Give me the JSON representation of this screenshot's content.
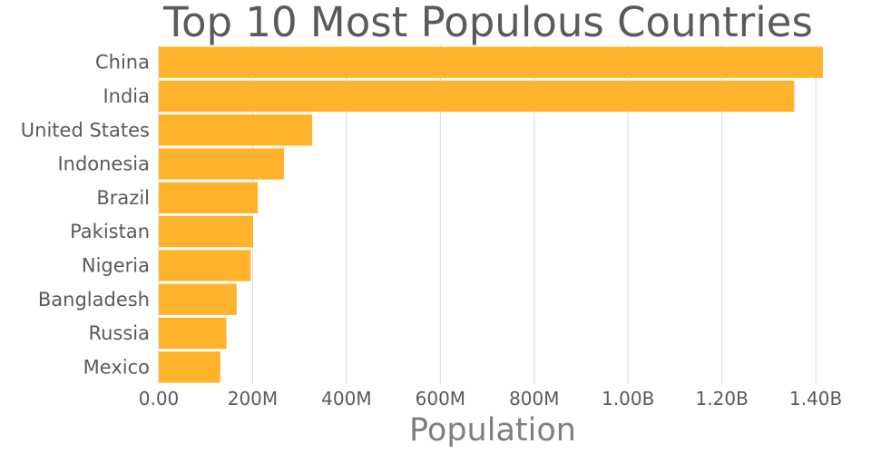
{
  "chart_data": {
    "type": "bar",
    "orientation": "horizontal",
    "title": "Top 10 Most Populous Countries",
    "xlabel": "Population",
    "ylabel": "",
    "categories": [
      "China",
      "India",
      "United States",
      "Indonesia",
      "Brazil",
      "Pakistan",
      "Nigeria",
      "Bangladesh",
      "Russia",
      "Mexico"
    ],
    "values": [
      1415000000,
      1354000000,
      327000000,
      267000000,
      211000000,
      201000000,
      196000000,
      166000000,
      144000000,
      131000000
    ],
    "xlim": [
      0,
      1450000000
    ],
    "ticks": [
      0,
      200000000,
      400000000,
      600000000,
      800000000,
      1000000000,
      1200000000,
      1400000000
    ],
    "tick_labels": [
      "0.00",
      "200M",
      "400M",
      "600M",
      "800M",
      "1.00B",
      "1.20B",
      "1.40B"
    ],
    "grid": true,
    "bar_color": "#ffb22b"
  }
}
